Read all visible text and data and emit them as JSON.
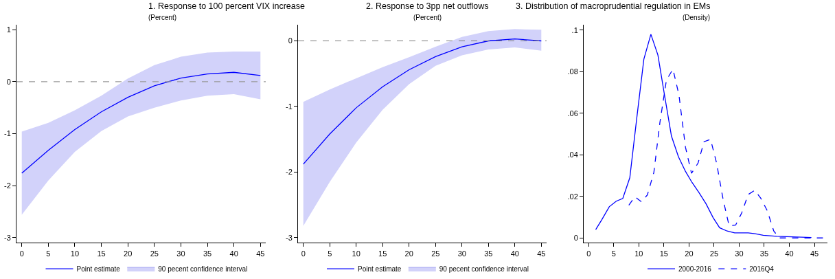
{
  "chart_data": [
    {
      "type": "line",
      "title": "1. Response to 100 percent VIX increase",
      "subtitle": "(Percent)",
      "x": [
        0,
        5,
        10,
        15,
        20,
        25,
        30,
        35,
        40,
        45
      ],
      "xlim": [
        -1,
        46
      ],
      "xticks": [
        0,
        5,
        10,
        15,
        20,
        25,
        30,
        35,
        40,
        45
      ],
      "ylim": [
        -3.1,
        1.1
      ],
      "yticks": [
        -3,
        -2,
        -1,
        0,
        1
      ],
      "legend": "bottom",
      "series": [
        {
          "name": "Point estimate",
          "type": "line",
          "color": "#0000ff",
          "values": [
            -1.76,
            -1.32,
            -0.92,
            -0.58,
            -0.3,
            -0.08,
            0.07,
            0.15,
            0.18,
            0.12
          ],
          "upper": [
            -0.96,
            -0.79,
            -0.55,
            -0.27,
            0.06,
            0.32,
            0.48,
            0.56,
            0.58,
            0.58
          ],
          "lower": [
            -2.56,
            -1.9,
            -1.35,
            -0.95,
            -0.67,
            -0.5,
            -0.36,
            -0.27,
            -0.24,
            -0.34
          ]
        },
        {
          "name": "90 pecent confidence interval",
          "type": "area",
          "color": "#d2d2fa",
          "values": [
            null,
            null,
            null,
            null,
            null,
            null,
            null,
            null,
            null,
            null
          ]
        }
      ],
      "ref_lines": [
        {
          "axis": "y",
          "value": 0,
          "color": "#999999",
          "line_style": "dashed"
        }
      ]
    },
    {
      "type": "line",
      "title": "2. Response to 3pp net outflows",
      "subtitle": "(Percent)",
      "x": [
        0,
        5,
        10,
        15,
        20,
        25,
        30,
        35,
        40,
        45
      ],
      "xlim": [
        -1,
        46
      ],
      "xticks": [
        0,
        5,
        10,
        15,
        20,
        25,
        30,
        35,
        40,
        45
      ],
      "ylim": [
        -3.08,
        0.25
      ],
      "yticks": [
        -3,
        -2,
        -1,
        0
      ],
      "legend": "bottom",
      "series": [
        {
          "name": "Point estimate",
          "type": "line",
          "color": "#0000ff",
          "values": [
            -1.88,
            -1.42,
            -1.02,
            -0.7,
            -0.44,
            -0.24,
            -0.09,
            0.0,
            0.03,
            0.0
          ],
          "upper": [
            -0.93,
            -0.74,
            -0.57,
            -0.4,
            -0.25,
            -0.09,
            0.06,
            0.15,
            0.18,
            0.17
          ],
          "lower": [
            -2.82,
            -2.15,
            -1.55,
            -1.05,
            -0.66,
            -0.38,
            -0.22,
            -0.13,
            -0.1,
            -0.15
          ]
        },
        {
          "name": "90 pecent confidence interval",
          "type": "area",
          "color": "#d2d2fa",
          "values": [
            null,
            null,
            null,
            null,
            null,
            null,
            null,
            null,
            null,
            null
          ]
        }
      ],
      "ref_lines": [
        {
          "axis": "y",
          "value": 0,
          "color": "#777777",
          "line_style": "dashed"
        }
      ]
    },
    {
      "type": "line",
      "title": "3. Distribution of macroprudential regulation in EMs",
      "subtitle": "(Density)",
      "xlim": [
        -1,
        47.6
      ],
      "xticks": [
        0,
        5,
        10,
        15,
        20,
        25,
        30,
        35,
        40,
        45
      ],
      "ylim": [
        -0.0024,
        0.1027
      ],
      "yticks": [
        0,
        {
          "value": 0.02,
          "label": ".02"
        },
        {
          "value": 0.04,
          "label": ".04"
        },
        {
          "value": 0.06,
          "label": ".06"
        },
        {
          "value": 0.08,
          "label": ".08"
        },
        {
          "value": 0.1,
          "label": ".1"
        }
      ],
      "legend": "bottom",
      "series": [
        {
          "name": "2000-2016",
          "color": "#0000ff",
          "line_style": "solid",
          "x": [
            1.4,
            2.6,
            4.1,
            5.5,
            6.8,
            8.2,
            9.6,
            11.0,
            12.4,
            13.8,
            15.1,
            16.5,
            17.9,
            19.3,
            20.6,
            22.0,
            23.4,
            24.8,
            26.1,
            27.6,
            29.1,
            31.8,
            33.2,
            34.8,
            37.5,
            44.4
          ],
          "values": [
            0.004,
            0.0087,
            0.015,
            0.0177,
            0.019,
            0.029,
            0.058,
            0.086,
            0.098,
            0.088,
            0.069,
            0.049,
            0.039,
            0.032,
            0.0267,
            0.0218,
            0.0164,
            0.0098,
            0.0049,
            0.0033,
            0.0024,
            0.0024,
            0.002,
            0.0013,
            0.0008,
            0.0002
          ]
        },
        {
          "name": "2016Q4",
          "color": "#0000ff",
          "line_style": "dashed",
          "x": [
            8.0,
            9.2,
            10.5,
            11.7,
            13.0,
            14.2,
            15.5,
            16.8,
            18.0,
            19.3,
            20.5,
            21.8,
            23.0,
            24.3,
            25.5,
            26.8,
            28.0,
            29.3,
            30.5,
            31.8,
            33.1,
            34.3,
            35.6,
            36.9,
            38.0,
            46.7
          ],
          "values": [
            0.0157,
            0.0198,
            0.0174,
            0.0207,
            0.0316,
            0.0556,
            0.076,
            0.0812,
            0.0687,
            0.0436,
            0.0311,
            0.036,
            0.0463,
            0.0474,
            0.036,
            0.0185,
            0.0058,
            0.0062,
            0.012,
            0.0209,
            0.0229,
            0.0191,
            0.0131,
            0.0033,
            0.0,
            0.0
          ]
        }
      ]
    }
  ]
}
